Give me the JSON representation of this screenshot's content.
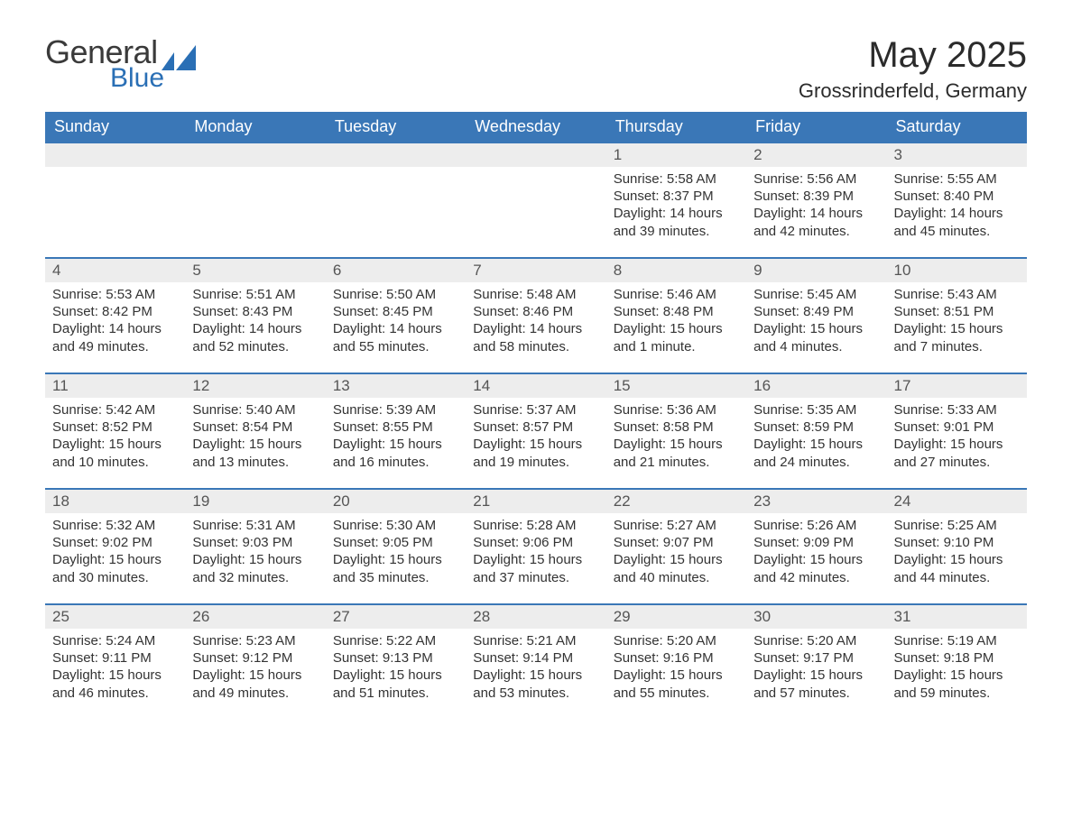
{
  "logo": {
    "text1": "General",
    "text2": "Blue",
    "color_general": "#3a3a3a",
    "color_blue": "#2a6fb5",
    "mark_color": "#2a6fb5"
  },
  "header": {
    "title": "May 2025",
    "location": "Grossrinderfeld, Germany"
  },
  "style": {
    "header_bg": "#3a77b7",
    "header_text": "#ffffff",
    "daynum_bg": "#ededed",
    "daynum_border": "#3a77b7",
    "body_text": "#333333",
    "daynum_text": "#555555",
    "page_bg": "#ffffff",
    "font_family": "Segoe UI, Arial, Helvetica, sans-serif",
    "title_fontsize": 40,
    "subtitle_fontsize": 22,
    "weekday_fontsize": 18,
    "daynum_fontsize": 17,
    "cell_fontsize": 15
  },
  "weekdays": [
    "Sunday",
    "Monday",
    "Tuesday",
    "Wednesday",
    "Thursday",
    "Friday",
    "Saturday"
  ],
  "weeks": [
    [
      {
        "day": "",
        "lines": []
      },
      {
        "day": "",
        "lines": []
      },
      {
        "day": "",
        "lines": []
      },
      {
        "day": "",
        "lines": []
      },
      {
        "day": "1",
        "lines": [
          "Sunrise: 5:58 AM",
          "Sunset: 8:37 PM",
          "Daylight: 14 hours and 39 minutes."
        ]
      },
      {
        "day": "2",
        "lines": [
          "Sunrise: 5:56 AM",
          "Sunset: 8:39 PM",
          "Daylight: 14 hours and 42 minutes."
        ]
      },
      {
        "day": "3",
        "lines": [
          "Sunrise: 5:55 AM",
          "Sunset: 8:40 PM",
          "Daylight: 14 hours and 45 minutes."
        ]
      }
    ],
    [
      {
        "day": "4",
        "lines": [
          "Sunrise: 5:53 AM",
          "Sunset: 8:42 PM",
          "Daylight: 14 hours and 49 minutes."
        ]
      },
      {
        "day": "5",
        "lines": [
          "Sunrise: 5:51 AM",
          "Sunset: 8:43 PM",
          "Daylight: 14 hours and 52 minutes."
        ]
      },
      {
        "day": "6",
        "lines": [
          "Sunrise: 5:50 AM",
          "Sunset: 8:45 PM",
          "Daylight: 14 hours and 55 minutes."
        ]
      },
      {
        "day": "7",
        "lines": [
          "Sunrise: 5:48 AM",
          "Sunset: 8:46 PM",
          "Daylight: 14 hours and 58 minutes."
        ]
      },
      {
        "day": "8",
        "lines": [
          "Sunrise: 5:46 AM",
          "Sunset: 8:48 PM",
          "Daylight: 15 hours and 1 minute."
        ]
      },
      {
        "day": "9",
        "lines": [
          "Sunrise: 5:45 AM",
          "Sunset: 8:49 PM",
          "Daylight: 15 hours and 4 minutes."
        ]
      },
      {
        "day": "10",
        "lines": [
          "Sunrise: 5:43 AM",
          "Sunset: 8:51 PM",
          "Daylight: 15 hours and 7 minutes."
        ]
      }
    ],
    [
      {
        "day": "11",
        "lines": [
          "Sunrise: 5:42 AM",
          "Sunset: 8:52 PM",
          "Daylight: 15 hours and 10 minutes."
        ]
      },
      {
        "day": "12",
        "lines": [
          "Sunrise: 5:40 AM",
          "Sunset: 8:54 PM",
          "Daylight: 15 hours and 13 minutes."
        ]
      },
      {
        "day": "13",
        "lines": [
          "Sunrise: 5:39 AM",
          "Sunset: 8:55 PM",
          "Daylight: 15 hours and 16 minutes."
        ]
      },
      {
        "day": "14",
        "lines": [
          "Sunrise: 5:37 AM",
          "Sunset: 8:57 PM",
          "Daylight: 15 hours and 19 minutes."
        ]
      },
      {
        "day": "15",
        "lines": [
          "Sunrise: 5:36 AM",
          "Sunset: 8:58 PM",
          "Daylight: 15 hours and 21 minutes."
        ]
      },
      {
        "day": "16",
        "lines": [
          "Sunrise: 5:35 AM",
          "Sunset: 8:59 PM",
          "Daylight: 15 hours and 24 minutes."
        ]
      },
      {
        "day": "17",
        "lines": [
          "Sunrise: 5:33 AM",
          "Sunset: 9:01 PM",
          "Daylight: 15 hours and 27 minutes."
        ]
      }
    ],
    [
      {
        "day": "18",
        "lines": [
          "Sunrise: 5:32 AM",
          "Sunset: 9:02 PM",
          "Daylight: 15 hours and 30 minutes."
        ]
      },
      {
        "day": "19",
        "lines": [
          "Sunrise: 5:31 AM",
          "Sunset: 9:03 PM",
          "Daylight: 15 hours and 32 minutes."
        ]
      },
      {
        "day": "20",
        "lines": [
          "Sunrise: 5:30 AM",
          "Sunset: 9:05 PM",
          "Daylight: 15 hours and 35 minutes."
        ]
      },
      {
        "day": "21",
        "lines": [
          "Sunrise: 5:28 AM",
          "Sunset: 9:06 PM",
          "Daylight: 15 hours and 37 minutes."
        ]
      },
      {
        "day": "22",
        "lines": [
          "Sunrise: 5:27 AM",
          "Sunset: 9:07 PM",
          "Daylight: 15 hours and 40 minutes."
        ]
      },
      {
        "day": "23",
        "lines": [
          "Sunrise: 5:26 AM",
          "Sunset: 9:09 PM",
          "Daylight: 15 hours and 42 minutes."
        ]
      },
      {
        "day": "24",
        "lines": [
          "Sunrise: 5:25 AM",
          "Sunset: 9:10 PM",
          "Daylight: 15 hours and 44 minutes."
        ]
      }
    ],
    [
      {
        "day": "25",
        "lines": [
          "Sunrise: 5:24 AM",
          "Sunset: 9:11 PM",
          "Daylight: 15 hours and 46 minutes."
        ]
      },
      {
        "day": "26",
        "lines": [
          "Sunrise: 5:23 AM",
          "Sunset: 9:12 PM",
          "Daylight: 15 hours and 49 minutes."
        ]
      },
      {
        "day": "27",
        "lines": [
          "Sunrise: 5:22 AM",
          "Sunset: 9:13 PM",
          "Daylight: 15 hours and 51 minutes."
        ]
      },
      {
        "day": "28",
        "lines": [
          "Sunrise: 5:21 AM",
          "Sunset: 9:14 PM",
          "Daylight: 15 hours and 53 minutes."
        ]
      },
      {
        "day": "29",
        "lines": [
          "Sunrise: 5:20 AM",
          "Sunset: 9:16 PM",
          "Daylight: 15 hours and 55 minutes."
        ]
      },
      {
        "day": "30",
        "lines": [
          "Sunrise: 5:20 AM",
          "Sunset: 9:17 PM",
          "Daylight: 15 hours and 57 minutes."
        ]
      },
      {
        "day": "31",
        "lines": [
          "Sunrise: 5:19 AM",
          "Sunset: 9:18 PM",
          "Daylight: 15 hours and 59 minutes."
        ]
      }
    ]
  ]
}
